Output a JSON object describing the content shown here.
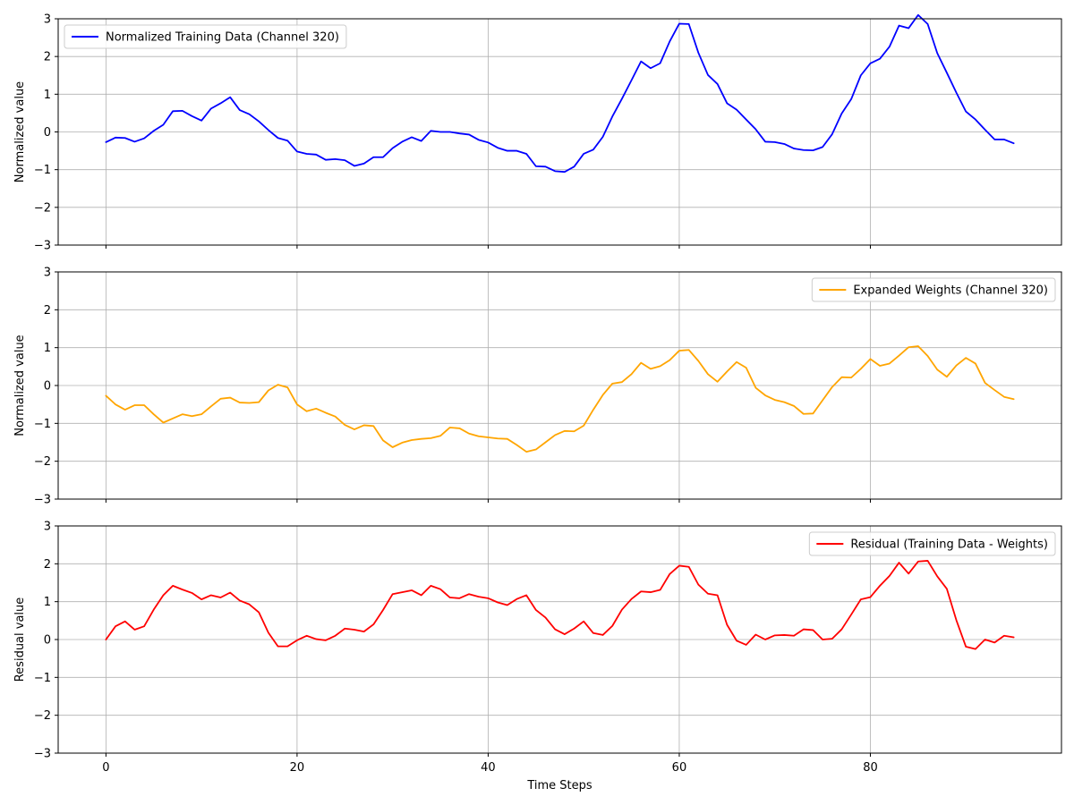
{
  "chart_data": [
    {
      "type": "line",
      "ylabel": "Normalized value",
      "xlabel": "",
      "xlim": [
        -5,
        100
      ],
      "ylim": [
        -3,
        3
      ],
      "xticks": [
        0,
        20,
        40,
        60,
        80
      ],
      "yticks": [
        -3,
        -2,
        -1,
        0,
        1,
        2,
        3
      ],
      "grid": true,
      "legend_position": "top-left",
      "series": [
        {
          "name": "Normalized Training Data (Channel 320)",
          "color": "#0000ff",
          "values": [
            -0.27,
            -0.15,
            -0.16,
            -0.26,
            -0.17,
            0.03,
            0.19,
            0.55,
            0.56,
            0.42,
            0.3,
            0.62,
            0.76,
            0.92,
            0.58,
            0.47,
            0.28,
            0.05,
            -0.16,
            -0.23,
            -0.52,
            -0.58,
            -0.6,
            -0.74,
            -0.72,
            -0.75,
            -0.9,
            -0.84,
            -0.67,
            -0.67,
            -0.43,
            -0.26,
            -0.14,
            -0.24,
            0.03,
            0.0,
            0.0,
            -0.04,
            -0.07,
            -0.21,
            -0.28,
            -0.42,
            -0.5,
            -0.5,
            -0.58,
            -0.91,
            -0.92,
            -1.04,
            -1.06,
            -0.92,
            -0.58,
            -0.47,
            -0.13,
            0.41,
            0.88,
            1.37,
            1.87,
            1.69,
            1.82,
            2.4,
            2.87,
            2.86,
            2.1,
            1.51,
            1.27,
            0.76,
            0.59,
            0.33,
            0.07,
            -0.26,
            -0.27,
            -0.32,
            -0.44,
            -0.48,
            -0.49,
            -0.4,
            -0.06,
            0.49,
            0.87,
            1.5,
            1.82,
            1.94,
            2.26,
            2.82,
            2.75,
            3.1,
            2.86,
            2.09,
            1.57,
            1.04,
            0.54,
            0.33,
            0.06,
            -0.2,
            -0.2,
            -0.3
          ]
        }
      ]
    },
    {
      "type": "line",
      "ylabel": "Normalized value",
      "xlabel": "",
      "xlim": [
        -5,
        100
      ],
      "ylim": [
        -3,
        3
      ],
      "xticks": [
        0,
        20,
        40,
        60,
        80
      ],
      "yticks": [
        -3,
        -2,
        -1,
        0,
        1,
        2,
        3
      ],
      "grid": true,
      "legend_position": "top-right",
      "series": [
        {
          "name": "Expanded Weights (Channel 320)",
          "color": "#ffa500",
          "values": [
            -0.27,
            -0.5,
            -0.64,
            -0.52,
            -0.52,
            -0.76,
            -0.98,
            -0.87,
            -0.76,
            -0.81,
            -0.76,
            -0.55,
            -0.35,
            -0.32,
            -0.45,
            -0.46,
            -0.44,
            -0.13,
            0.02,
            -0.05,
            -0.5,
            -0.68,
            -0.61,
            -0.72,
            -0.82,
            -1.04,
            -1.16,
            -1.05,
            -1.07,
            -1.45,
            -1.63,
            -1.51,
            -1.44,
            -1.41,
            -1.39,
            -1.33,
            -1.11,
            -1.13,
            -1.27,
            -1.34,
            -1.37,
            -1.4,
            -1.41,
            -1.57,
            -1.75,
            -1.69,
            -1.5,
            -1.31,
            -1.2,
            -1.21,
            -1.06,
            -0.64,
            -0.25,
            0.05,
            0.09,
            0.3,
            0.6,
            0.44,
            0.51,
            0.67,
            0.92,
            0.94,
            0.65,
            0.3,
            0.1,
            0.37,
            0.62,
            0.47,
            -0.06,
            -0.26,
            -0.38,
            -0.44,
            -0.54,
            -0.75,
            -0.74,
            -0.39,
            -0.04,
            0.22,
            0.21,
            0.44,
            0.7,
            0.52,
            0.58,
            0.79,
            1.01,
            1.04,
            0.78,
            0.42,
            0.23,
            0.53,
            0.73,
            0.58,
            0.07,
            -0.12,
            -0.3,
            -0.36
          ]
        }
      ]
    },
    {
      "type": "line",
      "ylabel": "Residual value",
      "xlabel": "Time Steps",
      "xlim": [
        -5,
        100
      ],
      "ylim": [
        -3,
        3
      ],
      "xticks": [
        0,
        20,
        40,
        60,
        80
      ],
      "yticks": [
        -3,
        -2,
        -1,
        0,
        1,
        2,
        3
      ],
      "grid": true,
      "legend_position": "top-right",
      "series": [
        {
          "name": "Residual (Training Data - Weights)",
          "color": "#ff0000",
          "values": [
            0.0,
            0.35,
            0.48,
            0.26,
            0.35,
            0.79,
            1.17,
            1.42,
            1.32,
            1.23,
            1.06,
            1.17,
            1.11,
            1.24,
            1.03,
            0.93,
            0.72,
            0.18,
            -0.18,
            -0.18,
            -0.02,
            0.1,
            0.01,
            -0.02,
            0.1,
            0.29,
            0.26,
            0.21,
            0.4,
            0.78,
            1.2,
            1.25,
            1.3,
            1.17,
            1.42,
            1.33,
            1.11,
            1.09,
            1.2,
            1.13,
            1.09,
            0.98,
            0.91,
            1.07,
            1.17,
            0.78,
            0.58,
            0.27,
            0.14,
            0.29,
            0.48,
            0.17,
            0.12,
            0.36,
            0.79,
            1.07,
            1.27,
            1.25,
            1.31,
            1.73,
            1.95,
            1.92,
            1.45,
            1.21,
            1.17,
            0.39,
            -0.03,
            -0.14,
            0.13,
            0.0,
            0.11,
            0.12,
            0.1,
            0.27,
            0.25,
            0.0,
            0.02,
            0.27,
            0.66,
            1.06,
            1.12,
            1.42,
            1.68,
            2.03,
            1.74,
            2.06,
            2.08,
            1.67,
            1.34,
            0.51,
            -0.19,
            -0.25,
            0.0,
            -0.08,
            0.1,
            0.06
          ]
        }
      ]
    }
  ]
}
